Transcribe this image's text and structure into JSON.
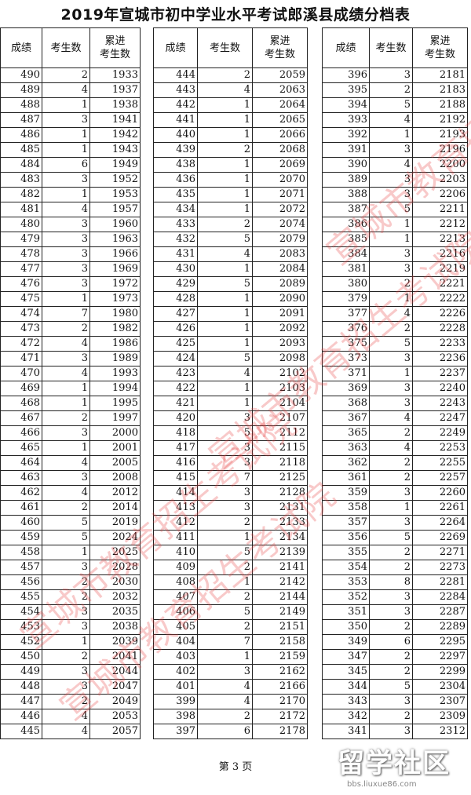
{
  "title": "2019年宣城市初中学业水平考试郎溪县成绩分档表",
  "headers": {
    "score": "成绩",
    "count": "考生数",
    "cum_line1": "累进",
    "cum_line2": "考生数"
  },
  "groups": [
    [
      [
        490,
        2,
        1933
      ],
      [
        489,
        4,
        1937
      ],
      [
        488,
        1,
        1938
      ],
      [
        487,
        3,
        1941
      ],
      [
        486,
        1,
        1942
      ],
      [
        485,
        1,
        1943
      ],
      [
        484,
        6,
        1949
      ],
      [
        483,
        3,
        1952
      ],
      [
        482,
        1,
        1953
      ],
      [
        481,
        4,
        1957
      ],
      [
        480,
        3,
        1960
      ],
      [
        479,
        3,
        1963
      ],
      [
        478,
        3,
        1966
      ],
      [
        477,
        3,
        1969
      ],
      [
        476,
        3,
        1972
      ],
      [
        475,
        1,
        1973
      ],
      [
        474,
        7,
        1980
      ],
      [
        473,
        2,
        1982
      ],
      [
        472,
        4,
        1986
      ],
      [
        471,
        3,
        1989
      ],
      [
        470,
        4,
        1993
      ],
      [
        469,
        1,
        1994
      ],
      [
        468,
        1,
        1995
      ],
      [
        467,
        2,
        1997
      ],
      [
        466,
        3,
        2000
      ],
      [
        465,
        1,
        2001
      ],
      [
        464,
        4,
        2005
      ],
      [
        463,
        3,
        2008
      ],
      [
        462,
        4,
        2012
      ],
      [
        461,
        2,
        2014
      ],
      [
        460,
        5,
        2019
      ],
      [
        459,
        5,
        2024
      ],
      [
        458,
        1,
        2025
      ],
      [
        457,
        3,
        2028
      ],
      [
        456,
        2,
        2030
      ],
      [
        455,
        2,
        2032
      ],
      [
        454,
        3,
        2035
      ],
      [
        453,
        3,
        2038
      ],
      [
        452,
        1,
        2039
      ],
      [
        450,
        2,
        2041
      ],
      [
        449,
        3,
        2044
      ],
      [
        448,
        3,
        2047
      ],
      [
        447,
        2,
        2049
      ],
      [
        446,
        4,
        2053
      ],
      [
        445,
        4,
        2057
      ]
    ],
    [
      [
        444,
        2,
        2059
      ],
      [
        443,
        4,
        2063
      ],
      [
        442,
        1,
        2064
      ],
      [
        441,
        1,
        2065
      ],
      [
        440,
        1,
        2066
      ],
      [
        439,
        2,
        2068
      ],
      [
        438,
        1,
        2069
      ],
      [
        436,
        1,
        2070
      ],
      [
        435,
        1,
        2071
      ],
      [
        434,
        1,
        2072
      ],
      [
        433,
        2,
        2074
      ],
      [
        432,
        5,
        2079
      ],
      [
        431,
        4,
        2083
      ],
      [
        430,
        1,
        2084
      ],
      [
        429,
        5,
        2089
      ],
      [
        428,
        1,
        2090
      ],
      [
        427,
        1,
        2091
      ],
      [
        426,
        1,
        2092
      ],
      [
        425,
        1,
        2093
      ],
      [
        424,
        5,
        2098
      ],
      [
        423,
        4,
        2102
      ],
      [
        422,
        1,
        2103
      ],
      [
        421,
        1,
        2104
      ],
      [
        420,
        3,
        2107
      ],
      [
        418,
        5,
        2112
      ],
      [
        417,
        3,
        2115
      ],
      [
        416,
        3,
        2118
      ],
      [
        415,
        7,
        2125
      ],
      [
        414,
        3,
        2128
      ],
      [
        413,
        3,
        2131
      ],
      [
        412,
        2,
        2133
      ],
      [
        411,
        1,
        2134
      ],
      [
        410,
        5,
        2139
      ],
      [
        409,
        2,
        2141
      ],
      [
        408,
        1,
        2142
      ],
      [
        407,
        2,
        2144
      ],
      [
        406,
        5,
        2149
      ],
      [
        405,
        2,
        2151
      ],
      [
        404,
        7,
        2158
      ],
      [
        403,
        1,
        2159
      ],
      [
        402,
        3,
        2162
      ],
      [
        401,
        4,
        2166
      ],
      [
        399,
        4,
        2170
      ],
      [
        398,
        2,
        2172
      ],
      [
        397,
        6,
        2178
      ]
    ],
    [
      [
        396,
        3,
        2181
      ],
      [
        395,
        2,
        2183
      ],
      [
        394,
        5,
        2188
      ],
      [
        393,
        4,
        2192
      ],
      [
        392,
        1,
        2193
      ],
      [
        391,
        3,
        2196
      ],
      [
        390,
        4,
        2200
      ],
      [
        389,
        3,
        2203
      ],
      [
        388,
        3,
        2206
      ],
      [
        387,
        5,
        2211
      ],
      [
        386,
        1,
        2212
      ],
      [
        385,
        1,
        2213
      ],
      [
        384,
        3,
        2216
      ],
      [
        381,
        3,
        2219
      ],
      [
        380,
        2,
        2221
      ],
      [
        379,
        1,
        2222
      ],
      [
        377,
        4,
        2226
      ],
      [
        376,
        2,
        2228
      ],
      [
        375,
        5,
        2233
      ],
      [
        373,
        3,
        2236
      ],
      [
        371,
        1,
        2237
      ],
      [
        369,
        3,
        2240
      ],
      [
        368,
        3,
        2243
      ],
      [
        367,
        4,
        2247
      ],
      [
        365,
        2,
        2249
      ],
      [
        363,
        4,
        2253
      ],
      [
        362,
        2,
        2255
      ],
      [
        361,
        2,
        2257
      ],
      [
        359,
        3,
        2260
      ],
      [
        358,
        1,
        2261
      ],
      [
        357,
        3,
        2264
      ],
      [
        356,
        5,
        2269
      ],
      [
        355,
        2,
        2271
      ],
      [
        354,
        2,
        2273
      ],
      [
        353,
        8,
        2281
      ],
      [
        352,
        3,
        2284
      ],
      [
        351,
        3,
        2287
      ],
      [
        350,
        2,
        2289
      ],
      [
        349,
        6,
        2295
      ],
      [
        347,
        2,
        2297
      ],
      [
        345,
        2,
        2299
      ],
      [
        344,
        5,
        2304
      ],
      [
        343,
        3,
        2307
      ],
      [
        342,
        2,
        2309
      ],
      [
        341,
        3,
        2312
      ]
    ]
  ],
  "watermark": "宣城市教育招生考试院",
  "footer": "第 3 页",
  "logo": {
    "text": "留学社区",
    "url_text": "bbs.liuxue86.com"
  },
  "colors": {
    "watermark": "#e63c3c"
  }
}
